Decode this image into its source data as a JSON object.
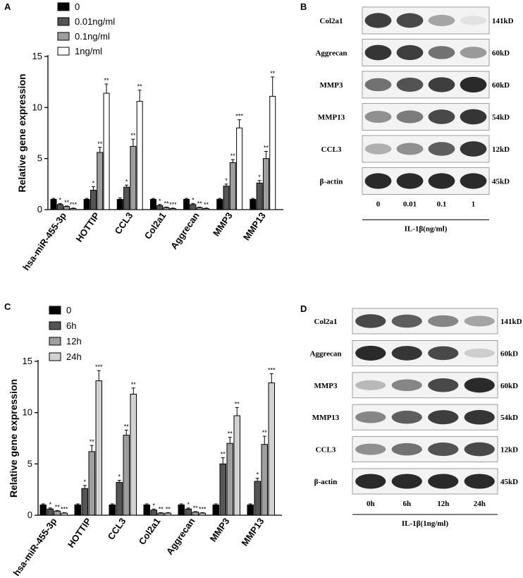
{
  "panels": {
    "A": "A",
    "B": "B",
    "C": "C",
    "D": "D"
  },
  "chart_data": [
    {
      "type": "bar",
      "panel": "A",
      "ylabel": "Relative gene expression",
      "ylim": [
        0,
        15
      ],
      "yticks": [
        "0",
        "5",
        "10",
        "15"
      ],
      "categories": [
        "hsa-miR-455-3p",
        "HOTTIP",
        "CCL3",
        "Col2a1",
        "Aggrecan",
        "MMP3",
        "MMP13"
      ],
      "legend_position": "top-left",
      "series": [
        {
          "name": "0",
          "color": "#000000",
          "values": [
            1.0,
            1.0,
            1.0,
            1.0,
            1.0,
            1.0,
            1.0
          ],
          "errors": [
            0.1,
            0.1,
            0.15,
            0.1,
            0.1,
            0.1,
            0.1
          ],
          "stars": [
            "",
            "",
            "",
            "",
            "",
            "",
            ""
          ]
        },
        {
          "name": "0.01ng/ml",
          "color": "#555555",
          "values": [
            0.5,
            1.9,
            2.2,
            0.4,
            0.5,
            2.3,
            2.6
          ],
          "errors": [
            0.1,
            0.35,
            0.2,
            0.1,
            0.1,
            0.2,
            0.25
          ],
          "stars": [
            "*",
            "*",
            "*",
            "*",
            "*",
            "*",
            "*"
          ]
        },
        {
          "name": "0.1ng/ml",
          "color": "#9e9e9e",
          "values": [
            0.3,
            5.6,
            6.2,
            0.2,
            0.2,
            4.6,
            5.0
          ],
          "errors": [
            0.05,
            0.5,
            0.7,
            0.05,
            0.05,
            0.3,
            0.7
          ],
          "stars": [
            "**",
            "**",
            "**",
            "**",
            "**",
            "**",
            "**"
          ]
        },
        {
          "name": "1ng/ml",
          "color": "#ffffff",
          "values": [
            0.1,
            11.4,
            10.6,
            0.1,
            0.1,
            8.0,
            11.1
          ],
          "errors": [
            0.05,
            0.9,
            1.1,
            0.05,
            0.05,
            0.8,
            1.9
          ],
          "stars": [
            "***",
            "**",
            "**",
            "***",
            "**",
            "***",
            "**"
          ]
        }
      ]
    },
    {
      "type": "bar",
      "panel": "C",
      "ylabel": "Relative gene expression",
      "ylim": [
        0,
        15
      ],
      "yticks": [
        "0",
        "5",
        "10",
        "15"
      ],
      "categories": [
        "hsa-miR-455-3p",
        "HOTTIP",
        "CCL3",
        "Col2a1",
        "Aggrecan",
        "MMP3",
        "MMP13"
      ],
      "legend_position": "top-left",
      "series": [
        {
          "name": "0",
          "color": "#000000",
          "values": [
            1.0,
            1.0,
            1.0,
            1.0,
            1.0,
            1.0,
            1.0
          ],
          "errors": [
            0.1,
            0.1,
            0.1,
            0.1,
            0.1,
            0.1,
            0.1
          ],
          "stars": [
            "",
            "",
            "",
            "",
            "",
            "",
            ""
          ]
        },
        {
          "name": "6h",
          "color": "#555555",
          "values": [
            0.6,
            2.6,
            3.2,
            0.5,
            0.6,
            5.0,
            3.3
          ],
          "errors": [
            0.1,
            0.3,
            0.2,
            0.1,
            0.1,
            0.6,
            0.3
          ],
          "stars": [
            "*",
            "*",
            "*",
            "*",
            "*",
            "**",
            "*"
          ]
        },
        {
          "name": "12h",
          "color": "#9e9e9e",
          "values": [
            0.4,
            6.2,
            7.8,
            0.2,
            0.3,
            7.0,
            6.9
          ],
          "errors": [
            0.05,
            0.6,
            0.5,
            0.05,
            0.05,
            0.6,
            0.8
          ],
          "stars": [
            "**",
            "**",
            "**",
            "**",
            "**",
            "**",
            "**"
          ]
        },
        {
          "name": "24h",
          "color": "#d2d2d2",
          "values": [
            0.2,
            13.1,
            11.8,
            0.2,
            0.2,
            9.7,
            12.9
          ],
          "errors": [
            0.05,
            1.0,
            0.6,
            0.05,
            0.05,
            0.8,
            0.9
          ],
          "stars": [
            "***",
            "***",
            "**",
            "**",
            "***",
            "**",
            "***"
          ]
        }
      ]
    }
  ],
  "blots": {
    "B": {
      "rows": [
        {
          "label": "Col2a1",
          "kd": "141kD",
          "intensity": [
            0.85,
            0.8,
            0.35,
            0.05
          ]
        },
        {
          "label": "Aggrecan",
          "kd": "60kD",
          "intensity": [
            0.9,
            0.85,
            0.6,
            0.4
          ]
        },
        {
          "label": "MMP3",
          "kd": "60kD",
          "intensity": [
            0.6,
            0.75,
            0.85,
            0.95
          ]
        },
        {
          "label": "MMP13",
          "kd": "54kD",
          "intensity": [
            0.45,
            0.55,
            0.8,
            0.9
          ]
        },
        {
          "label": "CCL3",
          "kd": "12kD",
          "intensity": [
            0.3,
            0.45,
            0.7,
            0.9
          ]
        },
        {
          "label": "β-actin",
          "kd": "45kD",
          "intensity": [
            0.95,
            0.95,
            0.95,
            0.95
          ]
        }
      ],
      "lanes": [
        "0",
        "0.01",
        "0.1",
        "1"
      ],
      "xlabel": "IL-1β(ng/ml)"
    },
    "D": {
      "rows": [
        {
          "label": "Col2a1",
          "kd": "141kD",
          "intensity": [
            0.8,
            0.7,
            0.5,
            0.35
          ]
        },
        {
          "label": "Aggrecan",
          "kd": "60kD",
          "intensity": [
            0.95,
            0.9,
            0.8,
            0.15
          ]
        },
        {
          "label": "MMP3",
          "kd": "60kD",
          "intensity": [
            0.25,
            0.5,
            0.8,
            0.95
          ]
        },
        {
          "label": "MMP13",
          "kd": "54kD",
          "intensity": [
            0.5,
            0.7,
            0.85,
            0.9
          ]
        },
        {
          "label": "CCL3",
          "kd": "12kD",
          "intensity": [
            0.45,
            0.6,
            0.75,
            0.8
          ]
        },
        {
          "label": "β-actin",
          "kd": "45kD",
          "intensity": [
            0.95,
            0.95,
            0.95,
            0.95
          ]
        }
      ],
      "lanes": [
        "0h",
        "6h",
        "12h",
        "24h"
      ],
      "xlabel": "IL-1β(1ng/ml)"
    }
  }
}
